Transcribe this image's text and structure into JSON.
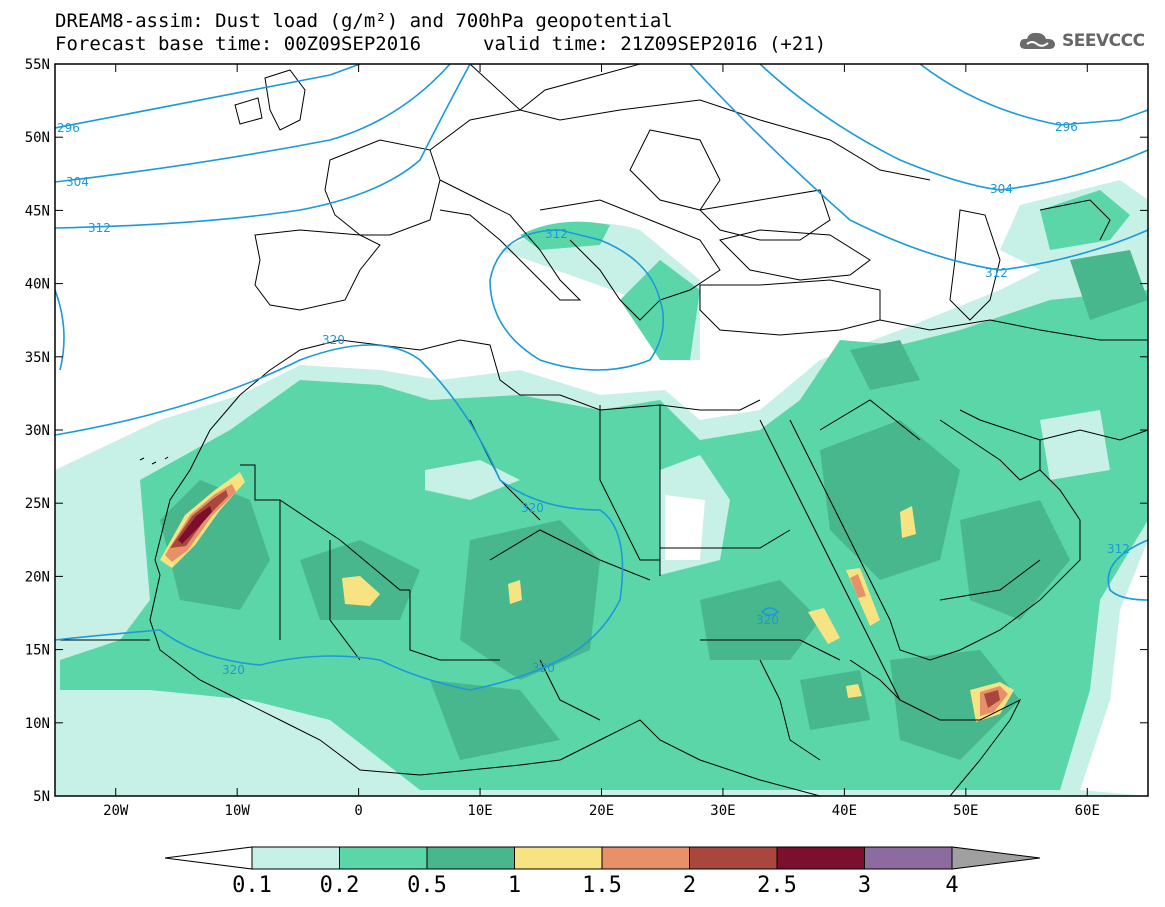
{
  "title_line1": "DREAM8-assim: Dust load (g/m²) and 700hPa geopotential",
  "title_base": "Forecast base time: 00Z09SEP2016",
  "title_valid": "valid time: 21Z09SEP2016 (+21)",
  "logo_text": "SEEVCCC",
  "map": {
    "lon_range": [
      -25,
      65
    ],
    "lat_range": [
      5,
      55
    ],
    "lat_ticks": [
      {
        "value": 55,
        "label": "55N"
      },
      {
        "value": 50,
        "label": "50N"
      },
      {
        "value": 45,
        "label": "45N"
      },
      {
        "value": 40,
        "label": "40N"
      },
      {
        "value": 35,
        "label": "35N"
      },
      {
        "value": 30,
        "label": "30N"
      },
      {
        "value": 25,
        "label": "25N"
      },
      {
        "value": 20,
        "label": "20N"
      },
      {
        "value": 15,
        "label": "15N"
      },
      {
        "value": 10,
        "label": "10N"
      },
      {
        "value": 5,
        "label": "5N"
      }
    ],
    "lon_ticks": [
      {
        "value": -20,
        "label": "20W"
      },
      {
        "value": -10,
        "label": "10W"
      },
      {
        "value": 0,
        "label": "0"
      },
      {
        "value": 10,
        "label": "10E"
      },
      {
        "value": 20,
        "label": "20E"
      },
      {
        "value": 30,
        "label": "30E"
      },
      {
        "value": 40,
        "label": "40E"
      },
      {
        "value": 50,
        "label": "50E"
      },
      {
        "value": 60,
        "label": "60E"
      }
    ],
    "contour_labels": [
      "296",
      "304",
      "312",
      "320",
      "312",
      "320",
      "320",
      "320",
      "296",
      "304",
      "312",
      "312",
      "320"
    ],
    "colors": {
      "ocean": "#ffffff",
      "border": "#000000",
      "contour": "#1a9ad9",
      "level1": "#c7f0e6",
      "level2": "#5ad6a9",
      "level3": "#48b78d",
      "level4": "#f7e382",
      "level5": "#e8906a",
      "level6": "#a9473e",
      "level7": "#7c0e2e"
    }
  },
  "colorbar": {
    "labels": [
      "0.1",
      "0.2",
      "0.5",
      "1",
      "1.5",
      "2",
      "2.5",
      "3",
      "4"
    ],
    "colors": [
      "#c7f0e6",
      "#5ad6a9",
      "#48b78d",
      "#f7e382",
      "#e8906a",
      "#a9473e",
      "#7c0e2e",
      "#8d6aa0"
    ],
    "left_color": "#ffffff",
    "right_color": "#a0a0a0"
  }
}
